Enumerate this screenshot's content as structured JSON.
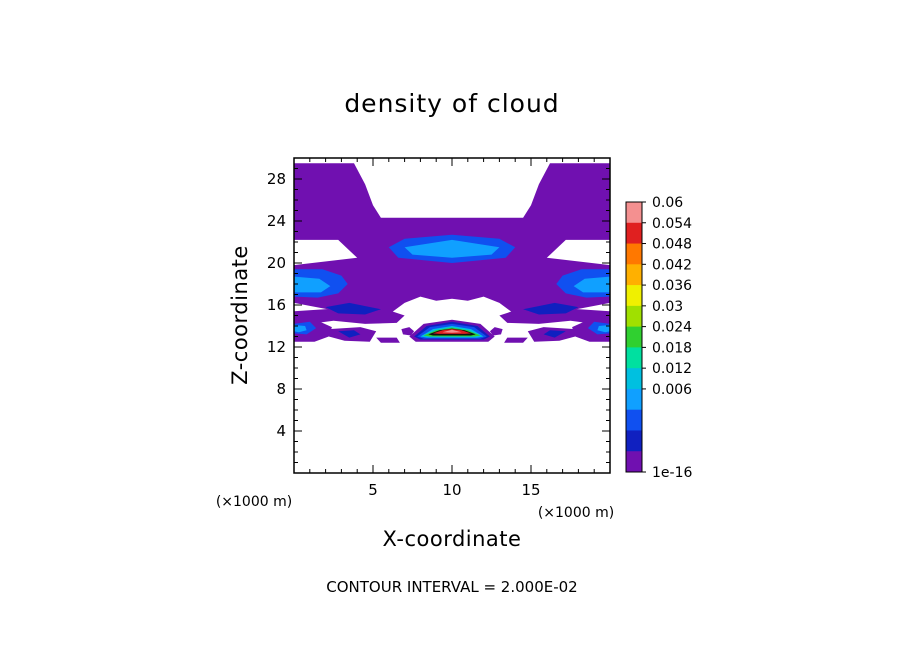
{
  "chart_data": {
    "type": "heatmap",
    "title": "density of cloud",
    "xlabel": "X-coordinate",
    "ylabel": "Z-coordinate",
    "x_unit_label": "(×1000 m)",
    "y_unit_label": "(×1000 m)",
    "xlim": [
      0,
      20
    ],
    "ylim": [
      0,
      30
    ],
    "x_ticks": [
      5,
      10,
      15
    ],
    "y_ticks": [
      4,
      8,
      12,
      16,
      20,
      24,
      28
    ],
    "x_minor_step": 1,
    "y_minor_step": 1,
    "footer": "CONTOUR INTERVAL = 2.000E-02",
    "colorbar": {
      "labels": [
        "0.06",
        "0.054",
        "0.048",
        "0.042",
        "0.036",
        "0.03",
        "0.024",
        "0.018",
        "0.012",
        "0.006",
        "1e-16"
      ],
      "colors": [
        "#f49090",
        "#e02020",
        "#ff7800",
        "#ffb000",
        "#f0f000",
        "#a0e000",
        "#30d030",
        "#00e0a0",
        "#00c0e0",
        "#10a0ff",
        "#1050f0",
        "#1020c0",
        "#7010b0"
      ]
    },
    "regions": [
      {
        "level": 0,
        "pts": [
          [
            0,
            29.5
          ],
          [
            3.8,
            29.5
          ],
          [
            4.5,
            27.5
          ],
          [
            5,
            25.5
          ],
          [
            5.5,
            24.3
          ],
          [
            14.5,
            24.3
          ],
          [
            15,
            25.5
          ],
          [
            15.5,
            27.5
          ],
          [
            16.2,
            29.5
          ],
          [
            20,
            29.5
          ],
          [
            20,
            22.2
          ],
          [
            17.2,
            22.2
          ],
          [
            16.5,
            21.2
          ],
          [
            16,
            20.5
          ],
          [
            20,
            19.8
          ],
          [
            20,
            16.2
          ],
          [
            16.5,
            15.2
          ],
          [
            14,
            15.1
          ],
          [
            13,
            16.2
          ],
          [
            12,
            16.8
          ],
          [
            11,
            16.4
          ],
          [
            10,
            16.6
          ],
          [
            9,
            16.4
          ],
          [
            8,
            16.8
          ],
          [
            7,
            16.2
          ],
          [
            6,
            15.1
          ],
          [
            3.5,
            15.2
          ],
          [
            0,
            16.2
          ],
          [
            0,
            19.8
          ],
          [
            4,
            20.5
          ],
          [
            3.5,
            21.2
          ],
          [
            2.8,
            22.2
          ],
          [
            0,
            22.2
          ]
        ]
      },
      {
        "level": 0,
        "pts": [
          [
            0,
            15.4
          ],
          [
            4,
            15.8
          ],
          [
            6,
            15.5
          ],
          [
            7,
            15
          ],
          [
            6.5,
            14.3
          ],
          [
            4.5,
            14.2
          ],
          [
            2.5,
            14.5
          ],
          [
            1,
            14.2
          ],
          [
            0,
            14.4
          ]
        ]
      },
      {
        "level": 0,
        "pts": [
          [
            20,
            15.4
          ],
          [
            16,
            15.8
          ],
          [
            14,
            15.5
          ],
          [
            13,
            15
          ],
          [
            13.5,
            14.3
          ],
          [
            15.5,
            14.2
          ],
          [
            17.5,
            14.5
          ],
          [
            19,
            14.2
          ],
          [
            20,
            14.4
          ]
        ]
      },
      {
        "level": 0,
        "pts": [
          [
            0,
            14.6
          ],
          [
            1.2,
            14.7
          ],
          [
            2.4,
            13.9
          ],
          [
            2.2,
            13
          ],
          [
            1.3,
            12.5
          ],
          [
            0,
            12.5
          ]
        ]
      },
      {
        "level": 0,
        "pts": [
          [
            20,
            14.6
          ],
          [
            18.8,
            14.7
          ],
          [
            17.6,
            13.9
          ],
          [
            17.8,
            13
          ],
          [
            18.7,
            12.5
          ],
          [
            20,
            12.5
          ]
        ]
      },
      {
        "level": 0,
        "pts": [
          [
            2.2,
            13.7
          ],
          [
            4.2,
            13.9
          ],
          [
            5.2,
            13.5
          ],
          [
            4.8,
            12.5
          ],
          [
            3.2,
            12.6
          ],
          [
            2.2,
            13
          ]
        ]
      },
      {
        "level": 0,
        "pts": [
          [
            17.8,
            13.7
          ],
          [
            15.8,
            13.9
          ],
          [
            14.8,
            13.5
          ],
          [
            15.2,
            12.5
          ],
          [
            16.8,
            12.6
          ],
          [
            17.8,
            13
          ]
        ]
      },
      {
        "level": 0,
        "pts": [
          [
            6.8,
            13.7
          ],
          [
            7.3,
            13.9
          ],
          [
            7.6,
            13.5
          ],
          [
            7.4,
            13.1
          ],
          [
            6.9,
            13.2
          ]
        ]
      },
      {
        "level": 0,
        "pts": [
          [
            13.2,
            13.7
          ],
          [
            12.7,
            13.9
          ],
          [
            12.4,
            13.5
          ],
          [
            12.6,
            13.1
          ],
          [
            13.1,
            13.2
          ]
        ]
      },
      {
        "level": 0,
        "pts": [
          [
            5.2,
            12.9
          ],
          [
            6.5,
            12.9
          ],
          [
            6.7,
            12.4
          ],
          [
            5.5,
            12.4
          ]
        ]
      },
      {
        "level": 0,
        "pts": [
          [
            14.8,
            12.9
          ],
          [
            13.5,
            12.9
          ],
          [
            13.3,
            12.4
          ],
          [
            14.5,
            12.4
          ]
        ]
      },
      {
        "level": 0,
        "pts": [
          [
            7.3,
            13
          ],
          [
            8.2,
            14.2
          ],
          [
            10,
            14.6
          ],
          [
            11.8,
            14.2
          ],
          [
            12.7,
            13
          ],
          [
            12.3,
            12.5
          ],
          [
            7.7,
            12.5
          ]
        ]
      },
      {
        "level": 2,
        "pts": [
          [
            6,
            21.5
          ],
          [
            7,
            22.3
          ],
          [
            10,
            22.7
          ],
          [
            13,
            22.3
          ],
          [
            14,
            21.5
          ],
          [
            13.4,
            20.5
          ],
          [
            10,
            20
          ],
          [
            6.6,
            20.5
          ]
        ]
      },
      {
        "level": 3,
        "pts": [
          [
            7,
            21.5
          ],
          [
            10,
            22.2
          ],
          [
            13,
            21.5
          ],
          [
            12.5,
            20.8
          ],
          [
            10,
            20.5
          ],
          [
            7.5,
            20.8
          ]
        ]
      },
      {
        "level": 2,
        "pts": [
          [
            0,
            19.4
          ],
          [
            1.8,
            19.4
          ],
          [
            3,
            18.8
          ],
          [
            3.4,
            18
          ],
          [
            2.8,
            17.1
          ],
          [
            1.5,
            16.7
          ],
          [
            0,
            16.8
          ]
        ]
      },
      {
        "level": 3,
        "pts": [
          [
            0,
            18.7
          ],
          [
            1.6,
            18.5
          ],
          [
            2.3,
            17.8
          ],
          [
            1.7,
            17.2
          ],
          [
            0,
            17.2
          ]
        ]
      },
      {
        "level": 2,
        "pts": [
          [
            20,
            19.4
          ],
          [
            18.2,
            19.4
          ],
          [
            17,
            18.8
          ],
          [
            16.6,
            18
          ],
          [
            17.2,
            17.1
          ],
          [
            18.5,
            16.7
          ],
          [
            20,
            16.8
          ]
        ]
      },
      {
        "level": 3,
        "pts": [
          [
            20,
            18.7
          ],
          [
            18.4,
            18.5
          ],
          [
            17.7,
            17.8
          ],
          [
            18.3,
            17.2
          ],
          [
            20,
            17.2
          ]
        ]
      },
      {
        "level": 1,
        "pts": [
          [
            2,
            15.8
          ],
          [
            3.5,
            16.2
          ],
          [
            5.5,
            15.6
          ],
          [
            4.5,
            15.1
          ],
          [
            2.8,
            15.2
          ]
        ]
      },
      {
        "level": 1,
        "pts": [
          [
            18,
            15.8
          ],
          [
            16.5,
            16.2
          ],
          [
            14.5,
            15.6
          ],
          [
            15.5,
            15.1
          ],
          [
            17.2,
            15.2
          ]
        ]
      },
      {
        "level": 2,
        "pts": [
          [
            0,
            14.2
          ],
          [
            1,
            14.4
          ],
          [
            1.4,
            13.8
          ],
          [
            0.8,
            13.2
          ],
          [
            0,
            13.3
          ]
        ]
      },
      {
        "level": 3,
        "pts": [
          [
            0,
            14.1
          ],
          [
            0.7,
            14
          ],
          [
            0.8,
            13.6
          ],
          [
            0.3,
            13.4
          ],
          [
            0,
            13.5
          ]
        ]
      },
      {
        "level": 2,
        "pts": [
          [
            20,
            14.2
          ],
          [
            19,
            14.4
          ],
          [
            18.6,
            13.8
          ],
          [
            19.2,
            13.2
          ],
          [
            20,
            13.3
          ]
        ]
      },
      {
        "level": 3,
        "pts": [
          [
            20,
            14.1
          ],
          [
            19.3,
            14
          ],
          [
            19.2,
            13.6
          ],
          [
            19.7,
            13.4
          ],
          [
            20,
            13.5
          ]
        ]
      },
      {
        "level": 1,
        "pts": [
          [
            2.8,
            13.5
          ],
          [
            3.8,
            13.6
          ],
          [
            4.2,
            13.2
          ],
          [
            3.5,
            12.9
          ]
        ]
      },
      {
        "level": 1,
        "pts": [
          [
            17.2,
            13.5
          ],
          [
            16.2,
            13.6
          ],
          [
            15.8,
            13.2
          ],
          [
            16.5,
            12.9
          ]
        ]
      },
      {
        "level": 1,
        "pts": [
          [
            7.6,
            13
          ],
          [
            8.4,
            14
          ],
          [
            10,
            14.4
          ],
          [
            11.6,
            14
          ],
          [
            12.4,
            13
          ],
          [
            12,
            12.7
          ],
          [
            8,
            12.7
          ]
        ]
      },
      {
        "level": 2,
        "pts": [
          [
            7.8,
            13
          ],
          [
            8.6,
            13.9
          ],
          [
            10,
            14.2
          ],
          [
            11.4,
            13.9
          ],
          [
            12.2,
            13
          ],
          [
            11.8,
            12.8
          ],
          [
            8.2,
            12.8
          ]
        ]
      },
      {
        "level": 4,
        "pts": [
          [
            8,
            13
          ],
          [
            8.8,
            13.7
          ],
          [
            10,
            14
          ],
          [
            11.2,
            13.7
          ],
          [
            12,
            13
          ],
          [
            11.6,
            12.9
          ],
          [
            8.4,
            12.9
          ]
        ]
      },
      {
        "level": 6,
        "pts": [
          [
            8.2,
            13.1
          ],
          [
            9,
            13.6
          ],
          [
            10,
            13.85
          ],
          [
            11,
            13.6
          ],
          [
            11.8,
            13.1
          ],
          [
            11.4,
            13
          ],
          [
            8.6,
            13
          ]
        ]
      },
      {
        "level": 0,
        "pts": [
          [
            8.5,
            13.2
          ],
          [
            9.2,
            13.6
          ],
          [
            10,
            13.75
          ],
          [
            10.8,
            13.6
          ],
          [
            11.5,
            13.2
          ],
          [
            11.2,
            13.1
          ],
          [
            8.8,
            13.1
          ]
        ]
      },
      {
        "level": 11,
        "pts": [
          [
            8.8,
            13.3
          ],
          [
            9.4,
            13.6
          ],
          [
            10,
            13.7
          ],
          [
            10.6,
            13.6
          ],
          [
            11.2,
            13.3
          ],
          [
            10.8,
            13.25
          ],
          [
            9.2,
            13.25
          ]
        ]
      },
      {
        "level": 12,
        "pts": [
          [
            9.4,
            13.4
          ],
          [
            10,
            13.65
          ],
          [
            10.6,
            13.4
          ],
          [
            10,
            13.35
          ]
        ]
      }
    ]
  }
}
